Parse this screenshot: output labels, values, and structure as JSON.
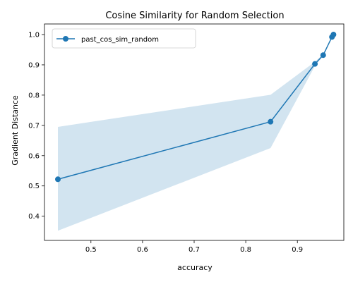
{
  "chart_data": {
    "type": "line",
    "title": "Cosine Similarity for Random Selection",
    "xlabel": "accuracy",
    "ylabel": "Gradient Distance",
    "xlim": [
      0.41,
      0.99
    ],
    "ylim": [
      0.32,
      1.035
    ],
    "xticks": [
      0.5,
      0.6,
      0.7,
      0.8,
      0.9
    ],
    "yticks": [
      0.4,
      0.5,
      0.6,
      0.7,
      0.8,
      0.9,
      1.0
    ],
    "grid": false,
    "legend_position": "top-left",
    "series": [
      {
        "name": "past_cos_sim_random",
        "color": "#1f77b4",
        "x": [
          0.436,
          0.848,
          0.934,
          0.95,
          0.967,
          0.97
        ],
        "y": [
          0.522,
          0.712,
          0.903,
          0.932,
          0.992,
          1.0
        ],
        "band_upper": [
          0.695,
          0.801,
          0.91,
          0.935,
          0.993,
          1.0
        ],
        "band_lower": [
          0.352,
          0.625,
          0.896,
          0.929,
          0.991,
          1.0
        ]
      }
    ]
  }
}
